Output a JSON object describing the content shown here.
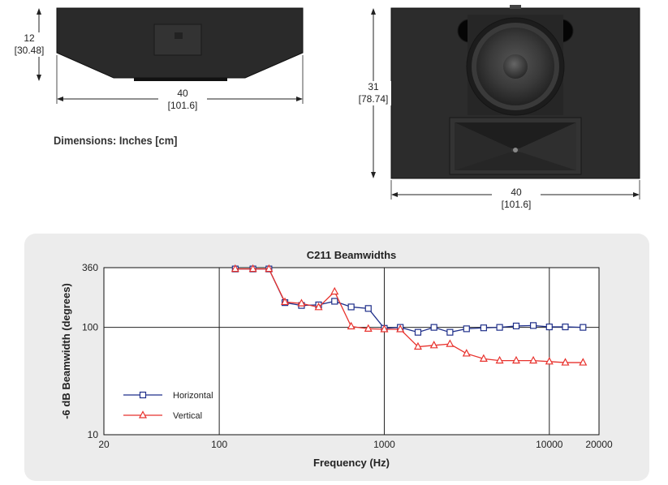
{
  "top_view": {
    "height_label": "12",
    "height_label_cm": "[30.48]",
    "width_label": "40",
    "width_label_cm": "[101.6]"
  },
  "front_view": {
    "height_label": "31",
    "height_label_cm": "[78.74]",
    "width_label": "40",
    "width_label_cm": "[101.6]"
  },
  "dimensions_caption": "Dimensions: Inches [cm]",
  "colors": {
    "horizontal": "#1f2f8a",
    "vertical": "#e8322d",
    "panel": "#ececec",
    "cabinet": "#2a2a2a"
  },
  "chart_data": {
    "type": "line",
    "title": "C211 Beamwidths",
    "xlabel": "Frequency (Hz)",
    "ylabel": "-6 dB Beamwidth (degrees)",
    "xscale": "log",
    "yscale": "log",
    "xlim": [
      20,
      20000
    ],
    "ylim": [
      10,
      360
    ],
    "x_tick_labels": [
      "20",
      "100",
      "1000",
      "10000",
      "20000"
    ],
    "x_ticks": [
      20,
      100,
      1000,
      10000,
      20000
    ],
    "y_tick_labels": [
      "360",
      "100",
      "10"
    ],
    "y_ticks": [
      360,
      100,
      10
    ],
    "x": [
      125,
      160,
      200,
      250,
      315,
      400,
      500,
      630,
      800,
      1000,
      1250,
      1600,
      2000,
      2500,
      3150,
      4000,
      5000,
      6300,
      8000,
      10000,
      12500,
      16000
    ],
    "series": [
      {
        "name": "Horizontal",
        "marker": "square",
        "values": [
          350,
          350,
          350,
          170,
          160,
          162,
          175,
          155,
          150,
          98,
          100,
          90,
          100,
          90,
          97,
          99,
          100,
          103,
          104,
          101,
          101,
          100
        ]
      },
      {
        "name": "Vertical",
        "marker": "triangle",
        "values": [
          350,
          350,
          350,
          172,
          167,
          154,
          215,
          102,
          97,
          96,
          96,
          66,
          68,
          70,
          57,
          51,
          49,
          49,
          49,
          48,
          47,
          47
        ]
      }
    ],
    "legend_position": "lower-left"
  }
}
